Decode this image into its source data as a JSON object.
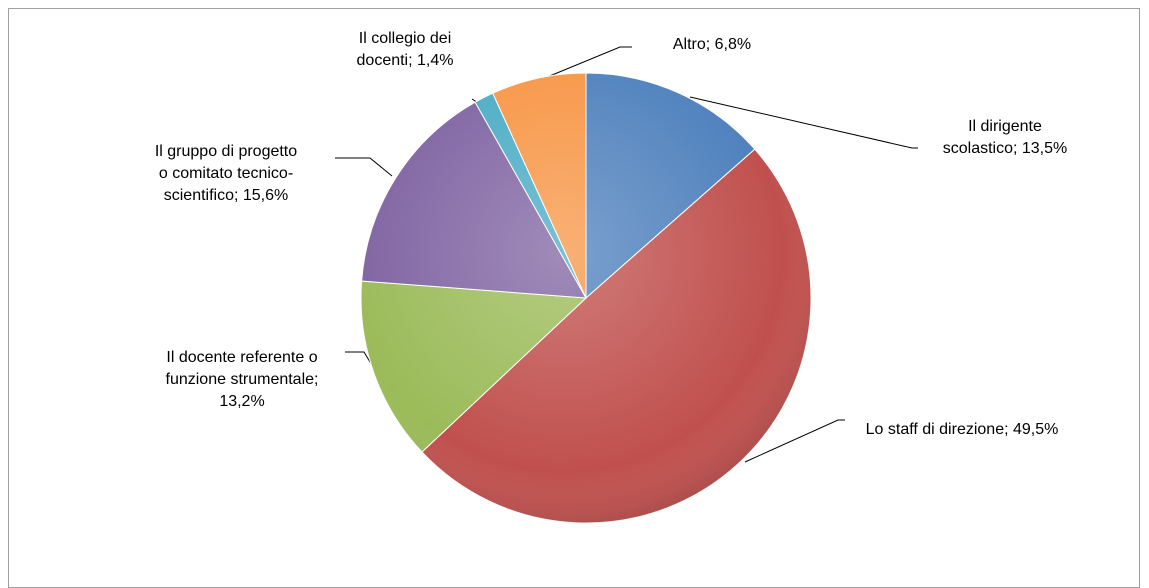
{
  "chart_data": {
    "type": "pie",
    "categories": [
      "Il dirigente scolastico",
      "Lo staff di direzione",
      "Il docente referente o funzione strumentale",
      "Il gruppo di progetto o comitato tecnico-scientifico",
      "Il collegio dei docenti",
      "Altro"
    ],
    "values": [
      13.5,
      49.5,
      13.2,
      15.6,
      1.4,
      6.8
    ],
    "value_labels": [
      "13,5%",
      "49,5%",
      "13,2%",
      "15,6%",
      "1,4%",
      "6,8%"
    ],
    "label_separator": "; ",
    "colors": [
      "#4f81bd",
      "#c0504d",
      "#9bbb59",
      "#8064a2",
      "#4bacc6",
      "#f79646"
    ]
  }
}
